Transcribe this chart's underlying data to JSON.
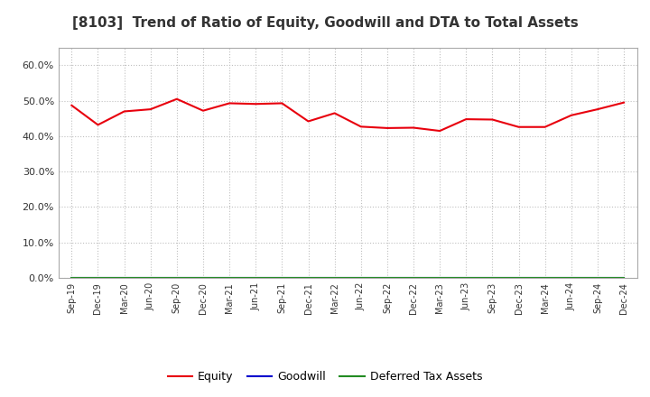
{
  "title": "[8103]  Trend of Ratio of Equity, Goodwill and DTA to Total Assets",
  "x_labels": [
    "Sep-19",
    "Dec-19",
    "Mar-20",
    "Jun-20",
    "Sep-20",
    "Dec-20",
    "Mar-21",
    "Jun-21",
    "Sep-21",
    "Dec-21",
    "Mar-22",
    "Jun-22",
    "Sep-22",
    "Dec-22",
    "Mar-23",
    "Jun-23",
    "Sep-23",
    "Dec-23",
    "Mar-24",
    "Jun-24",
    "Sep-24",
    "Dec-24"
  ],
  "equity": [
    0.487,
    0.432,
    0.47,
    0.476,
    0.505,
    0.472,
    0.493,
    0.491,
    0.493,
    0.442,
    0.465,
    0.427,
    0.423,
    0.424,
    0.415,
    0.448,
    0.447,
    0.426,
    0.426,
    0.459,
    0.476,
    0.495
  ],
  "goodwill": [
    0.0,
    0.0,
    0.0,
    0.0,
    0.0,
    0.0,
    0.0,
    0.0,
    0.0,
    0.0,
    0.0,
    0.0,
    0.0,
    0.0,
    0.0,
    0.0,
    0.0,
    0.0,
    0.0,
    0.0,
    0.0,
    0.0
  ],
  "dta": [
    0.0,
    0.0,
    0.0,
    0.0,
    0.0,
    0.0,
    0.0,
    0.0,
    0.0,
    0.0,
    0.0,
    0.0,
    0.0,
    0.0,
    0.0,
    0.0,
    0.0,
    0.0,
    0.0,
    0.0,
    0.0,
    0.0
  ],
  "equity_color": "#e8000d",
  "goodwill_color": "#0000cd",
  "dta_color": "#228b22",
  "ylim": [
    0.0,
    0.65
  ],
  "yticks": [
    0.0,
    0.1,
    0.2,
    0.3,
    0.4,
    0.5,
    0.6
  ],
  "background_color": "#ffffff",
  "grid_color": "#c0c0c0",
  "title_fontsize": 11,
  "legend_labels": [
    "Equity",
    "Goodwill",
    "Deferred Tax Assets"
  ]
}
